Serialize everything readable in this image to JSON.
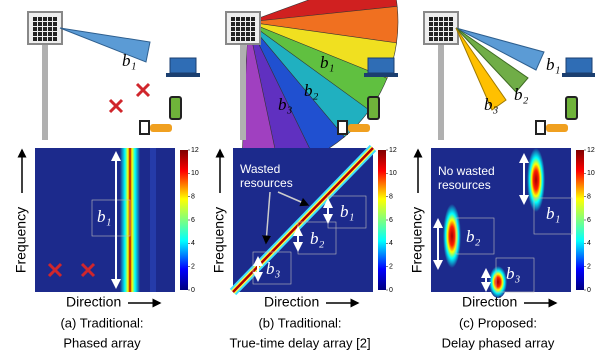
{
  "panels": [
    {
      "beam_labels": [
        "b₁"
      ],
      "heatmap": {
        "y_label": "Frequency",
        "x_label": "Direction",
        "labels": [
          "b₁"
        ],
        "colorbar_ticks": [
          0,
          2,
          4,
          6,
          8,
          10,
          12
        ]
      },
      "caption": [
        "(a) Traditional:",
        "Phased array"
      ]
    },
    {
      "beam_labels": [
        "b₁",
        "b₂",
        "b₃"
      ],
      "heatmap": {
        "y_label": "Frequency",
        "x_label": "Direction",
        "labels": [
          "b₁",
          "b₂",
          "b₃"
        ],
        "annotation": [
          "Wasted",
          "resources"
        ],
        "colorbar_ticks": [
          0,
          2,
          4,
          6,
          8,
          10,
          12
        ]
      },
      "caption": [
        "(b) Traditional:",
        "True-time delay array [2]"
      ]
    },
    {
      "beam_labels": [
        "b₁",
        "b₂",
        "b₃"
      ],
      "heatmap": {
        "y_label": "Frequency",
        "x_label": "Direction",
        "labels": [
          "b₁",
          "b₂",
          "b₃"
        ],
        "annotation": [
          "No wasted",
          "resources"
        ],
        "colorbar_ticks": [
          0,
          2,
          4,
          6,
          8,
          10,
          12
        ]
      },
      "caption": [
        "(c) Proposed:",
        "Delay phased array"
      ]
    }
  ]
}
